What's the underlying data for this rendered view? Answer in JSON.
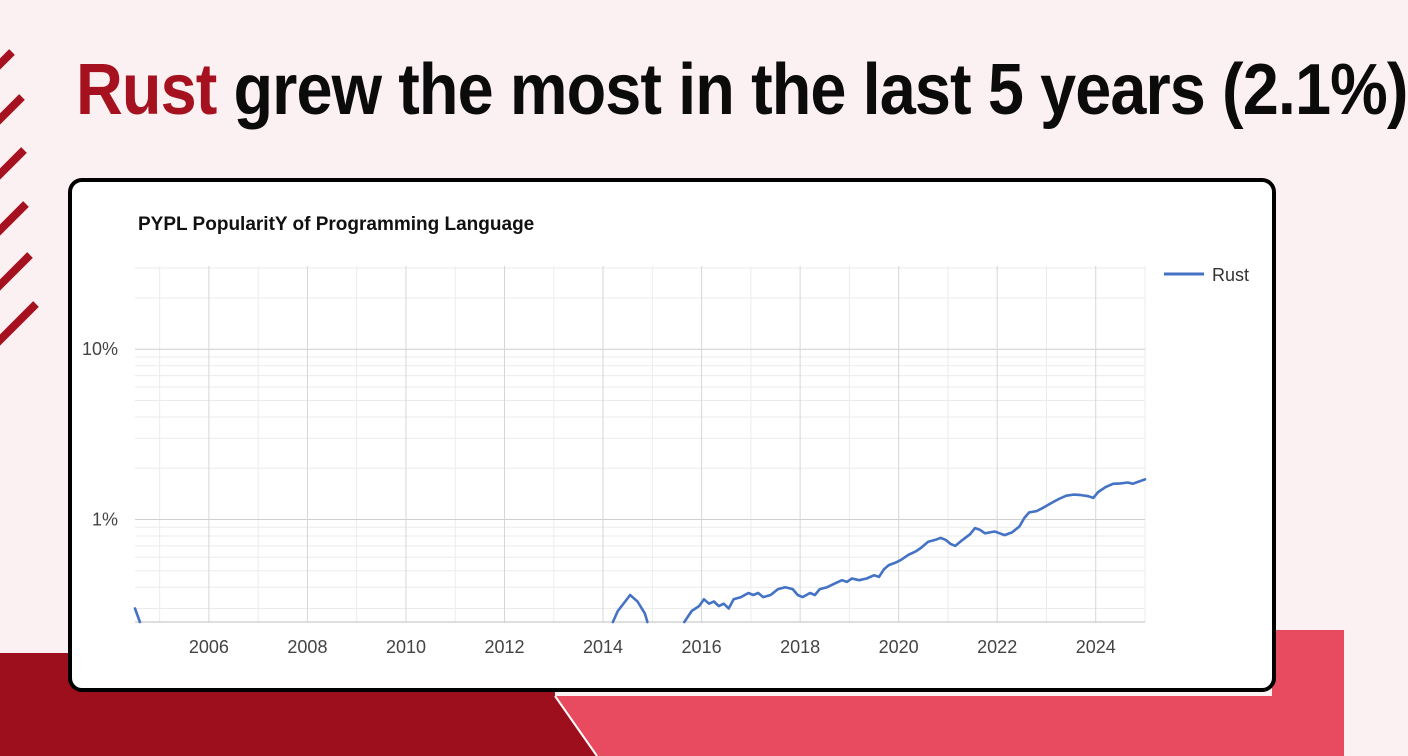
{
  "headline": {
    "accent": "Rust",
    "rest": " grew the most in the last 5 years (2.1%)"
  },
  "colors": {
    "accent": "#a5111f",
    "background": "#fcf1f2",
    "band_dark": "#9e0f1d",
    "band_light": "#e84a5f",
    "series_line": "#4472c4"
  },
  "chart_data": {
    "type": "line",
    "title": "PYPL PopularitY of Programming Language",
    "xlabel": "",
    "ylabel": "",
    "y_scale": "log",
    "xlim": [
      2004.5,
      2025.0
    ],
    "ylim": [
      0.25,
      30
    ],
    "x_ticks": [
      2006,
      2008,
      2010,
      2012,
      2014,
      2016,
      2018,
      2020,
      2022,
      2024
    ],
    "y_ticks": [
      {
        "value": 10,
        "label": "10%"
      },
      {
        "value": 1,
        "label": "1%"
      }
    ],
    "grid": true,
    "legend_position": "top-right",
    "series": [
      {
        "name": "Rust",
        "segments": [
          [
            [
              2004.5,
              0.3
            ],
            [
              2004.6,
              0.25
            ]
          ],
          [
            [
              2014.2,
              0.25
            ],
            [
              2014.3,
              0.29
            ],
            [
              2014.45,
              0.33
            ],
            [
              2014.55,
              0.36
            ],
            [
              2014.7,
              0.33
            ],
            [
              2014.85,
              0.28
            ],
            [
              2014.9,
              0.25
            ]
          ],
          [
            [
              2015.65,
              0.25
            ],
            [
              2015.8,
              0.29
            ],
            [
              2015.95,
              0.31
            ],
            [
              2016.05,
              0.34
            ],
            [
              2016.15,
              0.32
            ],
            [
              2016.25,
              0.33
            ],
            [
              2016.35,
              0.31
            ],
            [
              2016.45,
              0.32
            ],
            [
              2016.55,
              0.3
            ],
            [
              2016.65,
              0.34
            ],
            [
              2016.8,
              0.35
            ],
            [
              2016.95,
              0.37
            ],
            [
              2017.05,
              0.36
            ],
            [
              2017.15,
              0.37
            ],
            [
              2017.25,
              0.35
            ],
            [
              2017.4,
              0.36
            ],
            [
              2017.55,
              0.39
            ],
            [
              2017.7,
              0.4
            ],
            [
              2017.85,
              0.39
            ],
            [
              2017.95,
              0.36
            ],
            [
              2018.05,
              0.35
            ],
            [
              2018.2,
              0.37
            ],
            [
              2018.3,
              0.36
            ],
            [
              2018.4,
              0.39
            ],
            [
              2018.55,
              0.4
            ],
            [
              2018.7,
              0.42
            ],
            [
              2018.85,
              0.44
            ],
            [
              2018.95,
              0.43
            ],
            [
              2019.05,
              0.45
            ],
            [
              2019.2,
              0.44
            ],
            [
              2019.35,
              0.45
            ],
            [
              2019.5,
              0.47
            ],
            [
              2019.6,
              0.46
            ],
            [
              2019.7,
              0.51
            ],
            [
              2019.8,
              0.54
            ],
            [
              2019.95,
              0.56
            ],
            [
              2020.05,
              0.58
            ],
            [
              2020.2,
              0.62
            ],
            [
              2020.35,
              0.65
            ],
            [
              2020.45,
              0.68
            ],
            [
              2020.6,
              0.74
            ],
            [
              2020.75,
              0.76
            ],
            [
              2020.85,
              0.78
            ],
            [
              2020.95,
              0.76
            ],
            [
              2021.05,
              0.72
            ],
            [
              2021.15,
              0.7
            ],
            [
              2021.3,
              0.76
            ],
            [
              2021.45,
              0.82
            ],
            [
              2021.55,
              0.89
            ],
            [
              2021.65,
              0.87
            ],
            [
              2021.75,
              0.83
            ],
            [
              2021.85,
              0.84
            ],
            [
              2021.95,
              0.85
            ],
            [
              2022.05,
              0.83
            ],
            [
              2022.15,
              0.81
            ],
            [
              2022.3,
              0.84
            ],
            [
              2022.45,
              0.91
            ],
            [
              2022.55,
              1.02
            ],
            [
              2022.65,
              1.1
            ],
            [
              2022.8,
              1.12
            ],
            [
              2022.95,
              1.18
            ],
            [
              2023.1,
              1.25
            ],
            [
              2023.25,
              1.32
            ],
            [
              2023.4,
              1.38
            ],
            [
              2023.55,
              1.4
            ],
            [
              2023.7,
              1.39
            ],
            [
              2023.85,
              1.37
            ],
            [
              2023.95,
              1.34
            ],
            [
              2024.05,
              1.45
            ],
            [
              2024.2,
              1.55
            ],
            [
              2024.35,
              1.62
            ],
            [
              2024.5,
              1.63
            ],
            [
              2024.65,
              1.65
            ],
            [
              2024.75,
              1.62
            ],
            [
              2024.85,
              1.66
            ],
            [
              2025.0,
              1.72
            ]
          ]
        ]
      }
    ]
  }
}
